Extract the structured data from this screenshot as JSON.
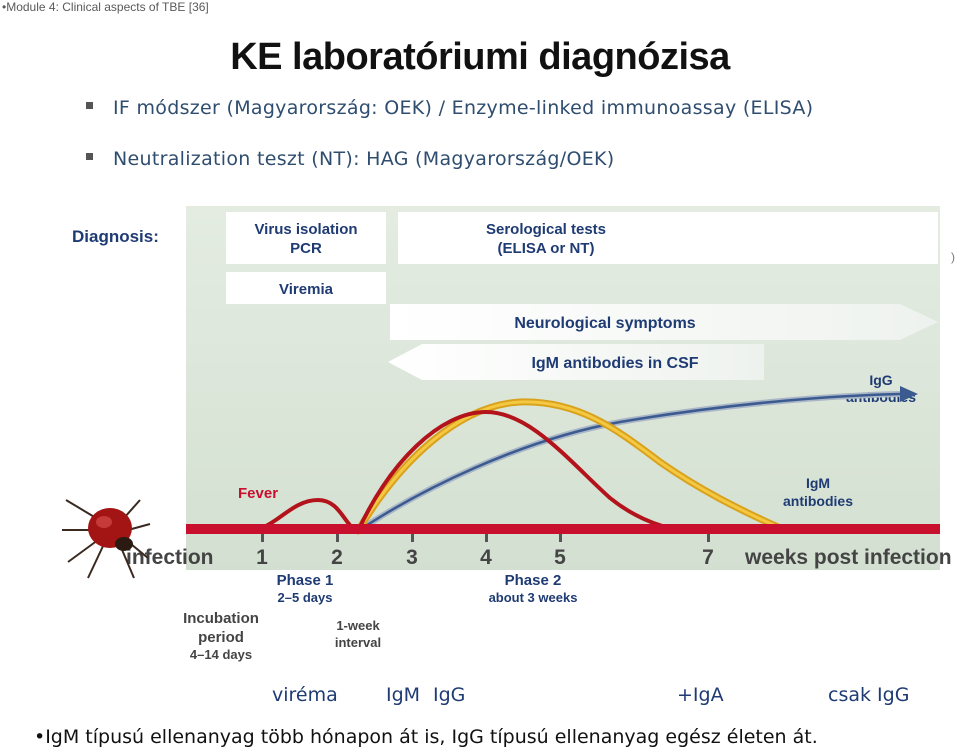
{
  "header_note": "•Module 4: Clinical aspects of TBE [36]",
  "title": "KE laboratóriumi diagnózisa",
  "bullets": [
    "IF módszer  (Magyarország: OEK) / Enzyme-linked  immunoassay (ELISA)",
    "Neutralization  teszt (NT): HAG (Magyarország/OEK)"
  ],
  "figure": {
    "diagnosis_label": "Diagnosis:",
    "virus_isolation": [
      "Virus isolation",
      "PCR"
    ],
    "serological": [
      "Serological tests",
      "(ELISA or NT)"
    ],
    "viremia": "Viremia",
    "neuro": "Neurological symptoms",
    "igm_csf": "IgM antibodies in CSF",
    "igg_label": [
      "IgG",
      "antibodies"
    ],
    "igm_label": [
      "IgM",
      "antibodies"
    ],
    "fever": "Fever",
    "infection": "infection",
    "ticks": [
      "1",
      "2",
      "3",
      "4",
      "5",
      "7"
    ],
    "weeks": "weeks post infection",
    "phase1": [
      "Phase 1",
      "2–5 days"
    ],
    "phase2": [
      "Phase 2",
      "about 3 weeks"
    ],
    "incubation": [
      "Incubation",
      "period",
      "4–14 days"
    ],
    "interval": [
      "1-week",
      "interval"
    ],
    "stray_mark": ")",
    "colors": {
      "panel": "#dce6da",
      "axis_bar": "#c8102e",
      "igg_curve": "#3b5a8f",
      "igm_curve": "#e8a317",
      "neuro_curve": "#b3131b",
      "label_red": "#c8102e",
      "label_blue": "#1f3b73"
    }
  },
  "bottom_labels": [
    "viréma",
    "IgM",
    "IgG",
    "+IgA",
    "csak IgG"
  ],
  "footer": "•IgM típusú ellenanyag több hónapon át is, IgG  típusú ellenanyag  egész életen át."
}
